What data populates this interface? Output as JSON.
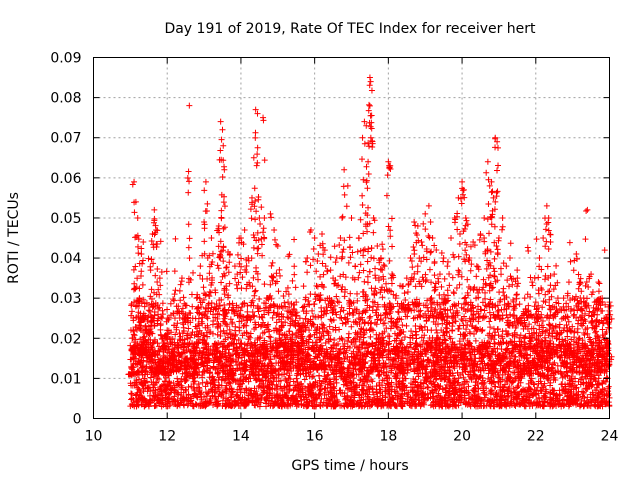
{
  "chart_data": {
    "type": "scatter",
    "title": "Day 191 of 2019, Rate Of TEC Index for receiver hert",
    "xlabel": "GPS time / hours",
    "ylabel": "ROTI / TECUs",
    "xlim": [
      10,
      24
    ],
    "ylim": [
      0,
      0.09
    ],
    "x_ticks": [
      10,
      12,
      14,
      16,
      18,
      20,
      22,
      24
    ],
    "y_ticks": [
      0,
      0.01,
      0.02,
      0.03,
      0.04,
      0.05,
      0.06,
      0.07,
      0.08,
      0.09
    ],
    "x_tick_labels": [
      "10",
      "12",
      "14",
      "16",
      "18",
      "20",
      "22",
      "24"
    ],
    "y_tick_labels": [
      "0",
      "0.01",
      "0.02",
      "0.03",
      "0.04",
      "0.05",
      "0.06",
      "0.07",
      "0.08",
      "0.09"
    ],
    "grid": true,
    "marker": "+",
    "marker_color": "#ff0000",
    "series": [
      {
        "points": [
          [
            11.0,
            0.011
          ],
          [
            11.05,
            0.02
          ],
          [
            11.1,
            0.059
          ],
          [
            11.15,
            0.054
          ],
          [
            11.2,
            0.05
          ],
          [
            11.25,
            0.03
          ],
          [
            11.3,
            0.041
          ],
          [
            11.35,
            0.044
          ],
          [
            11.4,
            0.022
          ],
          [
            11.5,
            0.027
          ],
          [
            11.55,
            0.037
          ],
          [
            11.6,
            0.046
          ],
          [
            11.65,
            0.052
          ],
          [
            11.7,
            0.047
          ],
          [
            11.8,
            0.035
          ],
          [
            11.9,
            0.014
          ],
          [
            12.0,
            0.022
          ],
          [
            12.1,
            0.019
          ],
          [
            12.2,
            0.031
          ],
          [
            12.3,
            0.028
          ],
          [
            12.4,
            0.035
          ],
          [
            12.5,
            0.026
          ],
          [
            12.6,
            0.078
          ],
          [
            12.7,
            0.017
          ],
          [
            12.8,
            0.03
          ],
          [
            12.9,
            0.038
          ],
          [
            13.0,
            0.049
          ],
          [
            13.05,
            0.059
          ],
          [
            13.1,
            0.04
          ],
          [
            13.2,
            0.045
          ],
          [
            13.3,
            0.032
          ],
          [
            13.4,
            0.048
          ],
          [
            13.45,
            0.074
          ],
          [
            13.5,
            0.072
          ],
          [
            13.52,
            0.068
          ],
          [
            13.55,
            0.062
          ],
          [
            13.6,
            0.033
          ],
          [
            13.7,
            0.041
          ],
          [
            13.8,
            0.027
          ],
          [
            13.9,
            0.036
          ],
          [
            14.0,
            0.045
          ],
          [
            14.1,
            0.047
          ],
          [
            14.2,
            0.04
          ],
          [
            14.3,
            0.055
          ],
          [
            14.35,
            0.065
          ],
          [
            14.4,
            0.077
          ],
          [
            14.45,
            0.076
          ],
          [
            14.5,
            0.05
          ],
          [
            14.6,
            0.075
          ],
          [
            14.7,
            0.03
          ],
          [
            14.8,
            0.051
          ],
          [
            14.9,
            0.047
          ],
          [
            15.0,
            0.043
          ],
          [
            15.1,
            0.028
          ],
          [
            15.2,
            0.024
          ],
          [
            15.3,
            0.031
          ],
          [
            15.4,
            0.021
          ],
          [
            15.5,
            0.029
          ],
          [
            15.6,
            0.025
          ],
          [
            15.7,
            0.033
          ],
          [
            15.8,
            0.04
          ],
          [
            15.9,
            0.047
          ],
          [
            16.0,
            0.045
          ],
          [
            16.1,
            0.041
          ],
          [
            16.2,
            0.046
          ],
          [
            16.3,
            0.038
          ],
          [
            16.4,
            0.03
          ],
          [
            16.5,
            0.035
          ],
          [
            16.6,
            0.04
          ],
          [
            16.7,
            0.045
          ],
          [
            16.8,
            0.062
          ],
          [
            16.9,
            0.058
          ],
          [
            17.0,
            0.05
          ],
          [
            17.1,
            0.038
          ],
          [
            17.2,
            0.045
          ],
          [
            17.3,
            0.07
          ],
          [
            17.35,
            0.074
          ],
          [
            17.4,
            0.073
          ],
          [
            17.45,
            0.064
          ],
          [
            17.5,
            0.085
          ],
          [
            17.52,
            0.084
          ],
          [
            17.6,
            0.05
          ],
          [
            17.7,
            0.043
          ],
          [
            17.8,
            0.04
          ],
          [
            17.9,
            0.038
          ],
          [
            18.0,
            0.064
          ],
          [
            18.05,
            0.063
          ],
          [
            18.1,
            0.036
          ],
          [
            18.2,
            0.03
          ],
          [
            18.3,
            0.028
          ],
          [
            18.4,
            0.033
          ],
          [
            18.5,
            0.035
          ],
          [
            18.6,
            0.04
          ],
          [
            18.7,
            0.049
          ],
          [
            18.8,
            0.048
          ],
          [
            18.9,
            0.044
          ],
          [
            19.0,
            0.051
          ],
          [
            19.1,
            0.053
          ],
          [
            19.2,
            0.045
          ],
          [
            19.3,
            0.042
          ],
          [
            19.4,
            0.036
          ],
          [
            19.5,
            0.04
          ],
          [
            19.6,
            0.038
          ],
          [
            19.7,
            0.045
          ],
          [
            19.8,
            0.05
          ],
          [
            19.9,
            0.055
          ],
          [
            20.0,
            0.059
          ],
          [
            20.05,
            0.057
          ],
          [
            20.1,
            0.05
          ],
          [
            20.2,
            0.04
          ],
          [
            20.3,
            0.044
          ],
          [
            20.4,
            0.038
          ],
          [
            20.5,
            0.046
          ],
          [
            20.6,
            0.05
          ],
          [
            20.7,
            0.064
          ],
          [
            20.75,
            0.058
          ],
          [
            20.8,
            0.059
          ],
          [
            20.85,
            0.055
          ],
          [
            20.9,
            0.07
          ],
          [
            20.95,
            0.069
          ],
          [
            21.0,
            0.045
          ],
          [
            21.1,
            0.05
          ],
          [
            21.2,
            0.038
          ],
          [
            21.3,
            0.04
          ],
          [
            21.4,
            0.028
          ],
          [
            21.5,
            0.035
          ],
          [
            21.6,
            0.025
          ],
          [
            21.7,
            0.03
          ],
          [
            21.8,
            0.027
          ],
          [
            21.9,
            0.034
          ],
          [
            22.0,
            0.029
          ],
          [
            22.1,
            0.04
          ],
          [
            22.2,
            0.045
          ],
          [
            22.3,
            0.053
          ],
          [
            22.35,
            0.05
          ],
          [
            22.4,
            0.044
          ],
          [
            22.5,
            0.036
          ],
          [
            22.6,
            0.03
          ],
          [
            22.7,
            0.027
          ],
          [
            22.8,
            0.025
          ],
          [
            22.9,
            0.034
          ],
          [
            23.0,
            0.03
          ],
          [
            23.1,
            0.041
          ],
          [
            23.2,
            0.034
          ],
          [
            23.3,
            0.03
          ],
          [
            23.4,
            0.052
          ],
          [
            23.5,
            0.036
          ],
          [
            23.6,
            0.029
          ],
          [
            23.7,
            0.034
          ],
          [
            23.8,
            0.03
          ],
          [
            23.9,
            0.025
          ],
          [
            24.0,
            0.029
          ]
        ]
      }
    ],
    "dense_band": {
      "x_start": 11.0,
      "x_end": 24.0,
      "y_low": 0.003,
      "y_high": 0.025,
      "typical": 0.011
    }
  }
}
